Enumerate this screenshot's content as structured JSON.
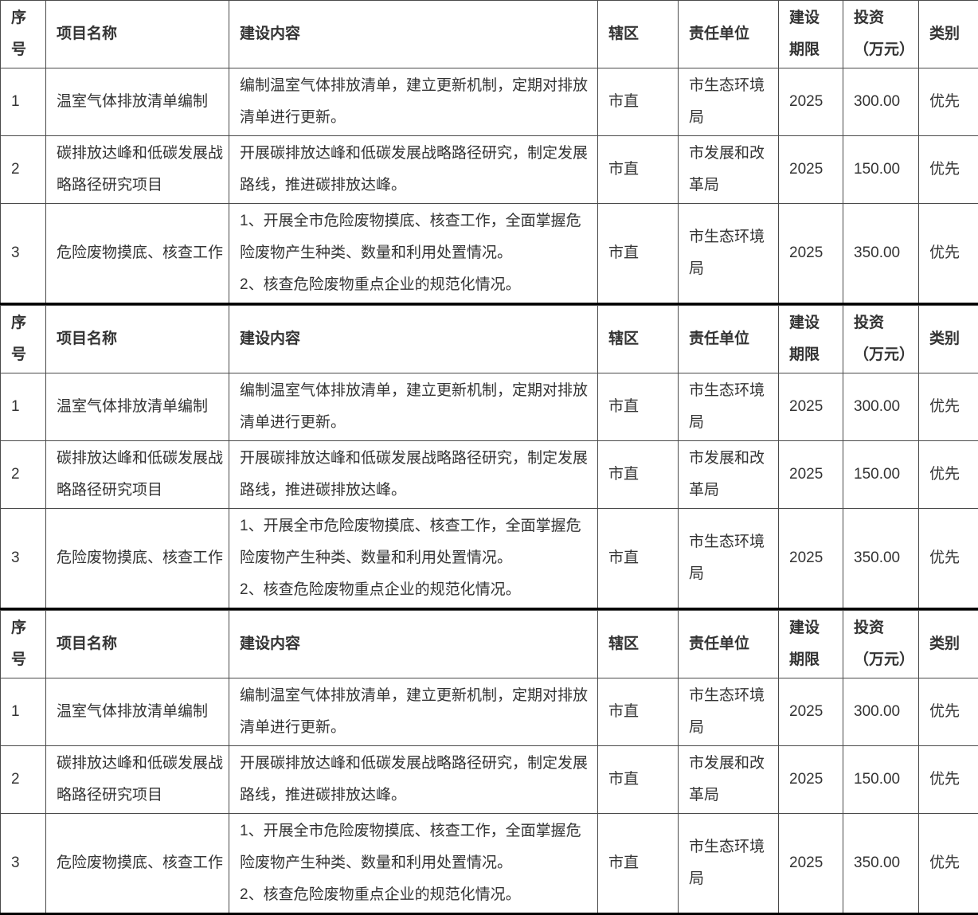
{
  "table": {
    "section_count": 3,
    "header": {
      "no": "序号",
      "project": "项目名称",
      "content": "建设内容",
      "district": "辖区",
      "unit": "责任单位",
      "period": "建设\n期限",
      "investment": "投资\n（万元）",
      "category": "类别"
    },
    "rows": [
      {
        "no": "1",
        "project": "温室气体排放清单编制",
        "content": "编制温室气体排放清单，建立更新机制，定期对排放清单进行更新。",
        "district": "市直",
        "unit": "市生态环境局",
        "period": "2025",
        "investment": "300.00",
        "category": "优先"
      },
      {
        "no": "2",
        "project": "碳排放达峰和低碳发展战略路径研究项目",
        "content": "开展碳排放达峰和低碳发展战略路径研究，制定发展路线，推进碳排放达峰。",
        "district": "市直",
        "unit": "市发展和改革局",
        "period": "2025",
        "investment": "150.00",
        "category": "优先"
      },
      {
        "no": "3",
        "project": "危险废物摸底、核查工作",
        "content": "1、开展全市危险废物摸底、核查工作，全面掌握危险废物产生种类、数量和利用处置情况。\n2、核查危险废物重点企业的规范化情况。",
        "district": "市直",
        "unit": "市生态环境局",
        "period": "2025",
        "investment": "350.00",
        "category": "优先"
      }
    ]
  }
}
